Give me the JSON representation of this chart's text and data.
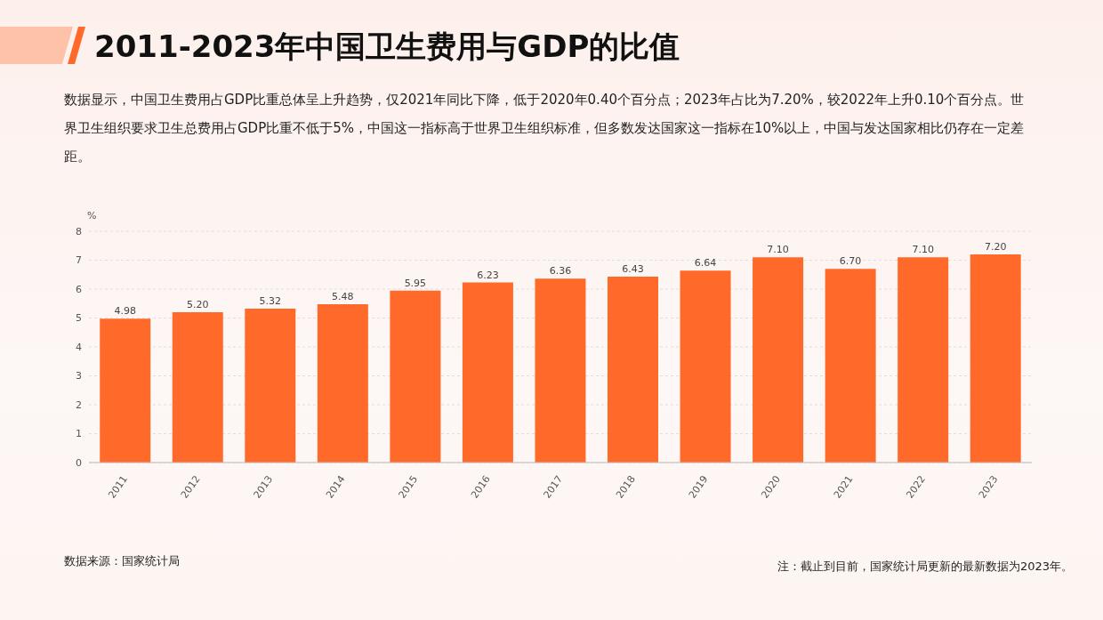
{
  "chart_data": {
    "type": "bar",
    "title": "2011-2023年中国卫生费用与GDP的比值",
    "subtitle": "数据显示，中国卫生费用占GDP比重总体呈上升趋势，仅2021年同比下降，低于2020年0.40个百分点；2023年占比为7.20%，较2022年上升0.10个百分点。世界卫生组织要求卫生总费用占GDP比重不低于5%，中国这一指标高于世界卫生组织标准，但多数发达国家这一指标在10%以上，中国与发达国家相比仍存在一定差距。",
    "ylabel": "%",
    "categories": [
      "2011",
      "2012",
      "2013",
      "2014",
      "2015",
      "2016",
      "2017",
      "2018",
      "2019",
      "2020",
      "2021",
      "2022",
      "2023"
    ],
    "values": [
      4.98,
      5.2,
      5.32,
      5.48,
      5.95,
      6.23,
      6.36,
      6.43,
      6.64,
      7.1,
      6.7,
      7.1,
      7.2
    ],
    "value_labels": [
      "4.98",
      "5.20",
      "5.32",
      "5.48",
      "5.95",
      "6.23",
      "6.36",
      "6.43",
      "6.64",
      "7.10",
      "6.70",
      "7.10",
      "7.20"
    ],
    "color": "#ff6a2a",
    "ylim": [
      0,
      8
    ],
    "yticks": [
      0,
      1,
      2,
      3,
      4,
      5,
      6,
      7,
      8
    ],
    "grid": "y",
    "annotations": [
      "数据来源：国家统计局",
      "注：截止到目前，国家统计局更新的最新数据为2023年。"
    ]
  }
}
